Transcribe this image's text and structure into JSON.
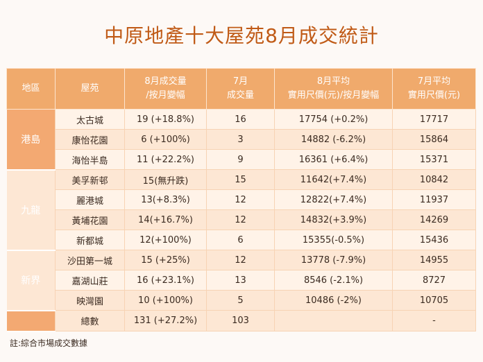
{
  "title": "中原地產十大屋苑8月成交統計",
  "table": {
    "headers": [
      {
        "line1": "地區",
        "line2": ""
      },
      {
        "line1": "屋苑",
        "line2": ""
      },
      {
        "line1": "8月成交量",
        "line2": "/按月變幅"
      },
      {
        "line1": "7月",
        "line2": "成交量"
      },
      {
        "line1": "8月平均",
        "line2": "實用尺價(元)/按月變幅"
      },
      {
        "line1": "7月平均",
        "line2": "實用尺價(元)"
      }
    ],
    "regions": [
      "港島",
      "九龍",
      "新界"
    ],
    "rows": [
      {
        "estate": "太古城",
        "aug_volume": "19 (+18.8%)",
        "jul_volume": "16",
        "aug_price": "17754 (+0.2%)",
        "jul_price": "17717"
      },
      {
        "estate": "康怡花園",
        "aug_volume": "6 (+100%)",
        "jul_volume": "3",
        "aug_price": "14882 (-6.2%)",
        "jul_price": "15864"
      },
      {
        "estate": "海怡半島",
        "aug_volume": "11 (+22.2%)",
        "jul_volume": "9",
        "aug_price": "16361 (+6.4%)",
        "jul_price": "15371"
      },
      {
        "estate": "美孚新邨",
        "aug_volume": "15(無升跌)",
        "jul_volume": "15",
        "aug_price": "11642(+7.4%)",
        "jul_price": "10842"
      },
      {
        "estate": "麗港城",
        "aug_volume": "13(+8.3%)",
        "jul_volume": "12",
        "aug_price": "12822(+7.4%)",
        "jul_price": "11937"
      },
      {
        "estate": "黃埔花園",
        "aug_volume": "14(+16.7%)",
        "jul_volume": "12",
        "aug_price": "14832(+3.9%)",
        "jul_price": "14269"
      },
      {
        "estate": "新都城",
        "aug_volume": "12(+100%)",
        "jul_volume": "6",
        "aug_price": "15355(-0.5%)",
        "jul_price": "15436"
      },
      {
        "estate": "沙田第一城",
        "aug_volume": "15 (+25%)",
        "jul_volume": "12",
        "aug_price": "13778 (-7.9%)",
        "jul_price": "14955"
      },
      {
        "estate": "嘉湖山莊",
        "aug_volume": "16 (+23.1%)",
        "jul_volume": "13",
        "aug_price": "8546 (-2.1%)",
        "jul_price": "8727"
      },
      {
        "estate": "映灣園",
        "aug_volume": "10 (+100%)",
        "jul_volume": "5",
        "aug_price": "10486 (-2%)",
        "jul_price": "10705"
      }
    ],
    "total": {
      "label": "總數",
      "aug_volume": "131 (+27.2%)",
      "jul_volume": "103",
      "aug_price": "",
      "jul_price": "-"
    }
  },
  "note": "註:綜合市場成交數據",
  "colors": {
    "title": "#c05a16",
    "header_bg": "#f0aa6c",
    "region_bg": "#f3a972",
    "row_light": "#fff3e8",
    "row_dark": "#fde7d4"
  }
}
